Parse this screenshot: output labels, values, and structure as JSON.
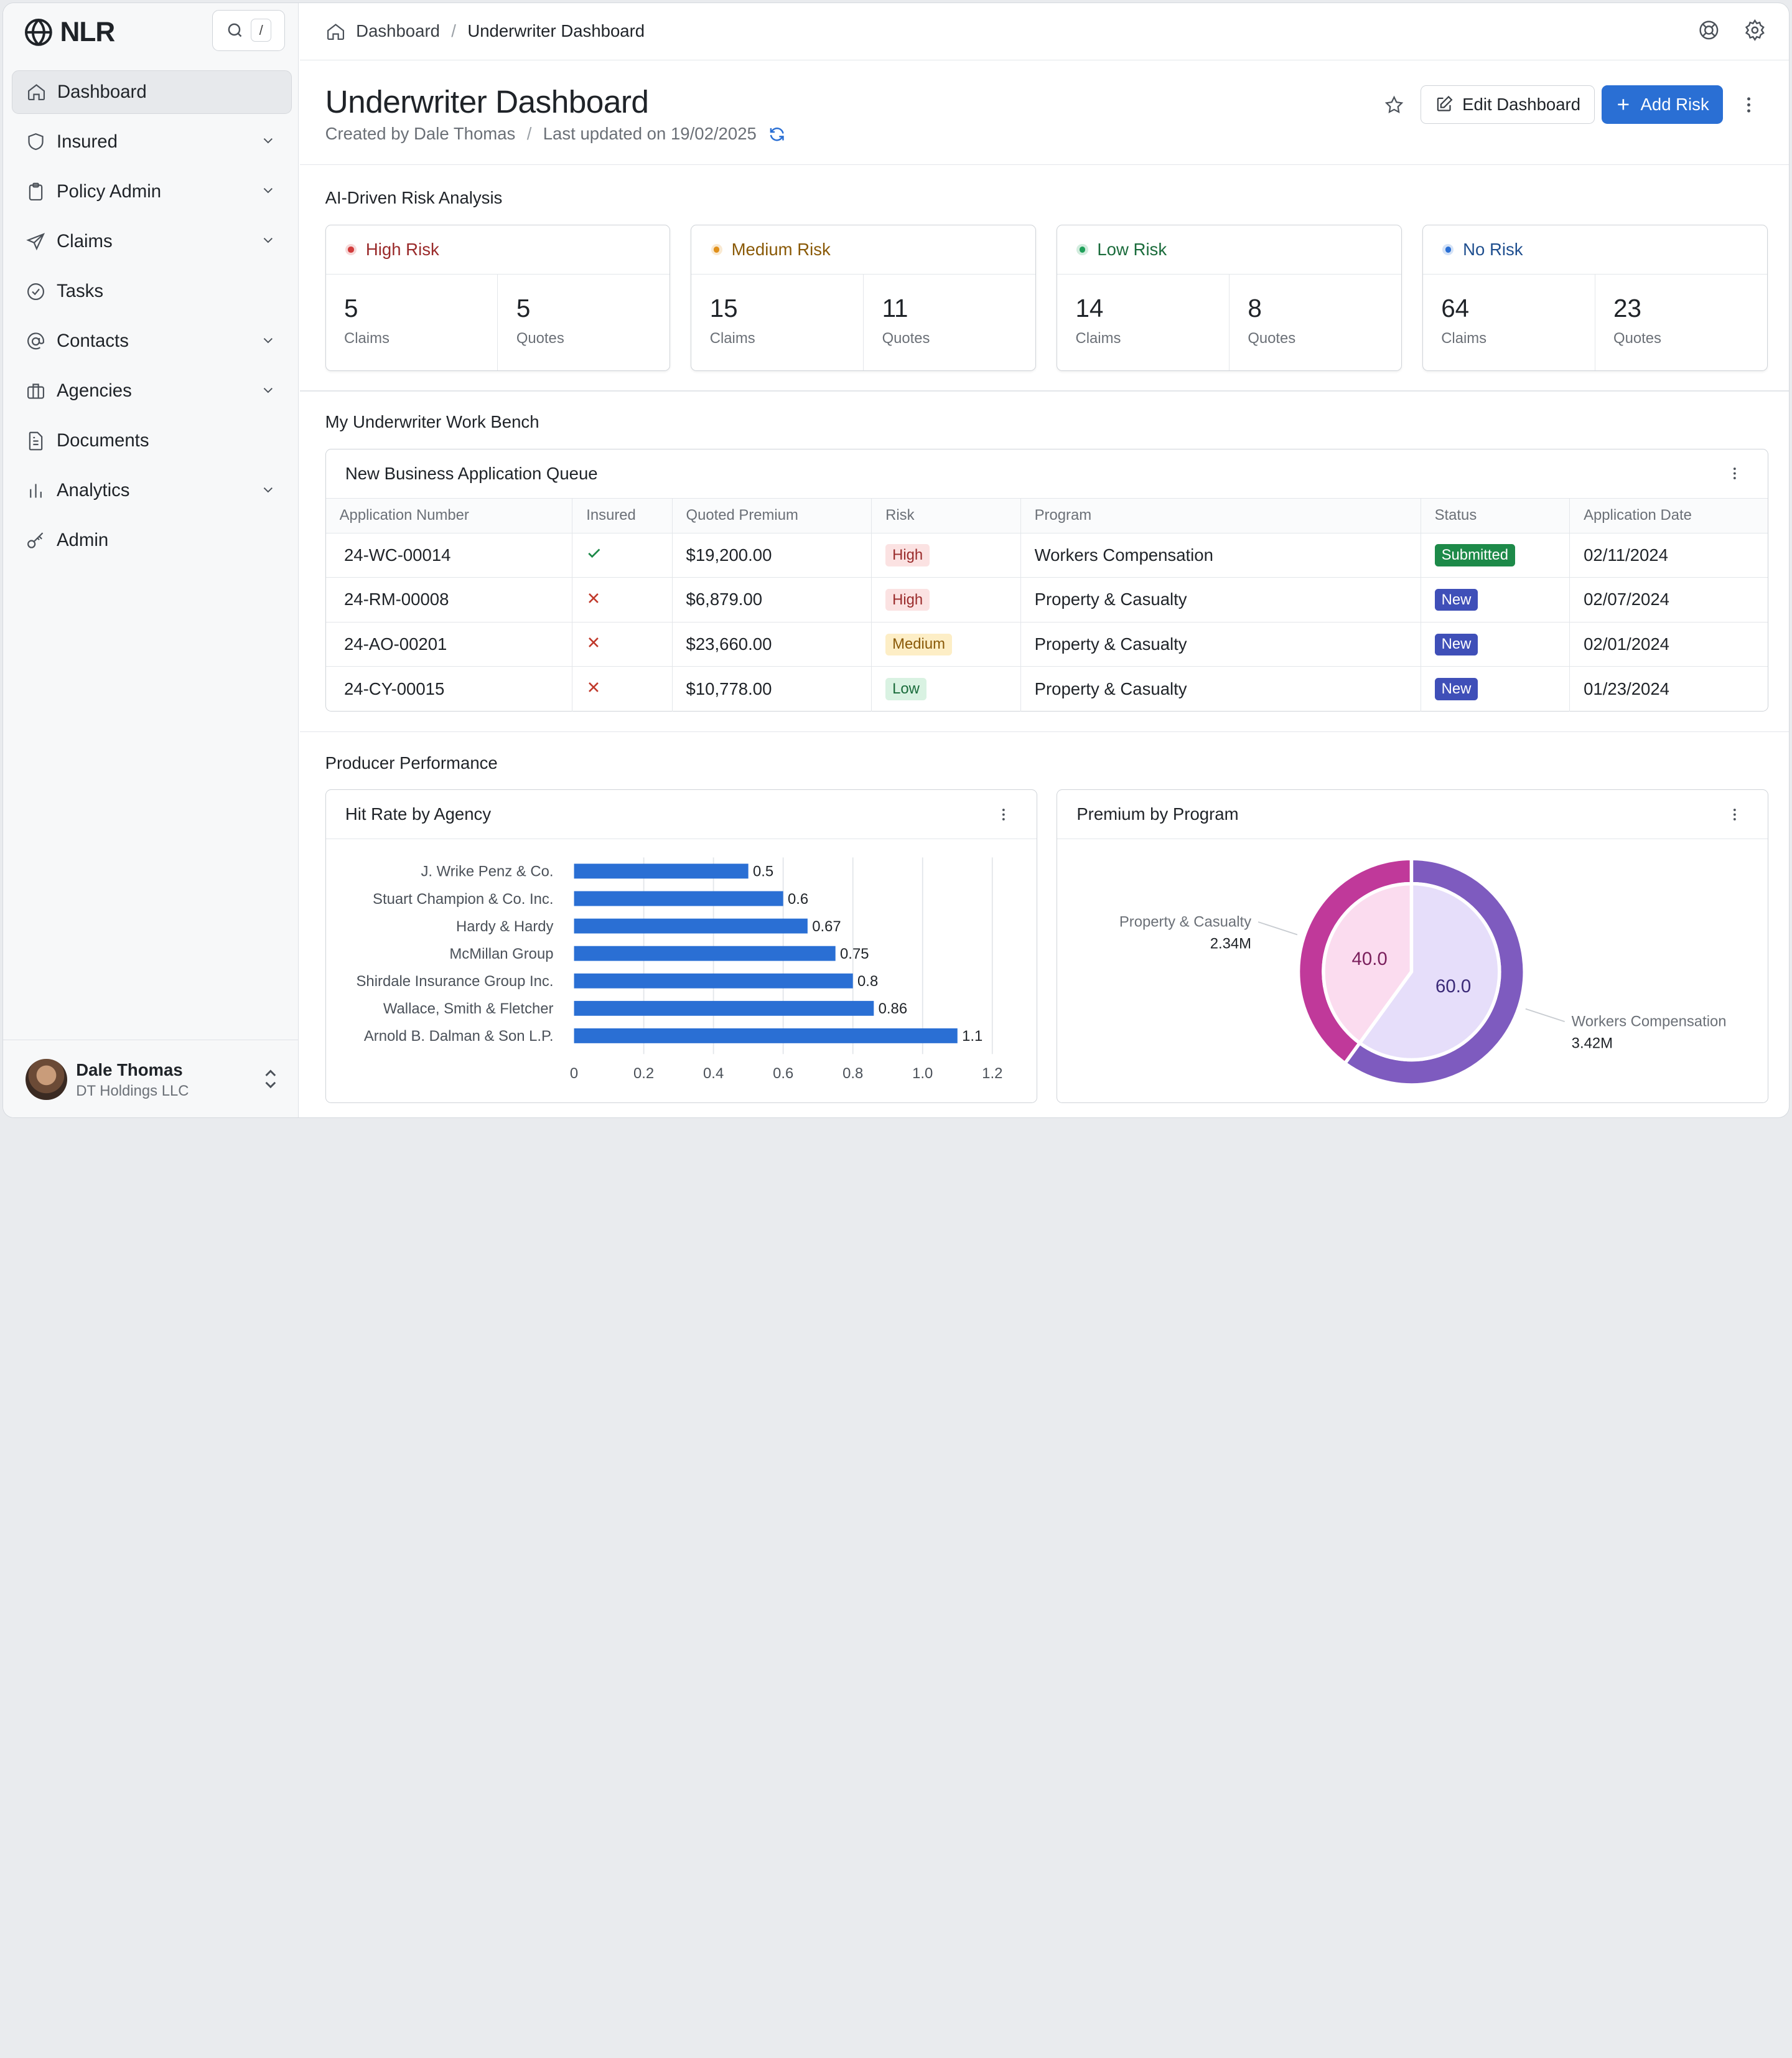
{
  "brand": {
    "name": "NLR"
  },
  "search": {
    "shortcut": "/"
  },
  "sidebar": {
    "items": [
      {
        "label": "Dashboard"
      },
      {
        "label": "Insured"
      },
      {
        "label": "Policy Admin"
      },
      {
        "label": "Claims"
      },
      {
        "label": "Tasks"
      },
      {
        "label": "Contacts"
      },
      {
        "label": "Agencies"
      },
      {
        "label": "Documents"
      },
      {
        "label": "Analytics"
      },
      {
        "label": "Admin"
      }
    ]
  },
  "user": {
    "name": "Dale Thomas",
    "org": "DT Holdings LLC"
  },
  "breadcrumb": {
    "root": "Dashboard",
    "current": "Underwriter Dashboard"
  },
  "page": {
    "title": "Underwriter Dashboard",
    "created_by": "Created by Dale Thomas",
    "updated": "Last updated on 19/02/2025",
    "edit_label": "Edit Dashboard",
    "add_label": "Add Risk"
  },
  "risk_section": {
    "title": "AI-Driven Risk Analysis",
    "claims_label": "Claims",
    "quotes_label": "Quotes",
    "cards": [
      {
        "label": "High Risk",
        "claims": "5",
        "quotes": "5",
        "color": "#d23c3c",
        "text_color": "#9a2b2b"
      },
      {
        "label": "Medium Risk",
        "claims": "15",
        "quotes": "11",
        "color": "#e0901a",
        "text_color": "#8a5a08"
      },
      {
        "label": "Low Risk",
        "claims": "14",
        "quotes": "8",
        "color": "#20a05a",
        "text_color": "#1a6b3b"
      },
      {
        "label": "No Risk",
        "claims": "64",
        "quotes": "23",
        "color": "#2a6fd4",
        "text_color": "#1f4f8f"
      }
    ]
  },
  "workbench": {
    "title": "My Underwriter Work Bench",
    "queue_title": "New Business Application Queue",
    "columns": [
      "Application Number",
      "Insured",
      "Quoted Premium",
      "Risk",
      "Program",
      "Status",
      "Application Date"
    ],
    "rows": [
      {
        "number": "24-WC-00014",
        "insured": true,
        "premium": "$19,200.00",
        "risk": "High",
        "risk_class": "high",
        "program": "Workers Compensation",
        "status": "Submitted",
        "status_class": "submitted",
        "date": "02/11/2024"
      },
      {
        "number": "24-RM-00008",
        "insured": false,
        "premium": "$6,879.00",
        "risk": "High",
        "risk_class": "high",
        "program": "Property & Casualty",
        "status": "New",
        "status_class": "new",
        "date": "02/07/2024"
      },
      {
        "number": "24-AO-00201",
        "insured": false,
        "premium": "$23,660.00",
        "risk": "Medium",
        "risk_class": "medium",
        "program": "Property & Casualty",
        "status": "New",
        "status_class": "new",
        "date": "02/01/2024"
      },
      {
        "number": "24-CY-00015",
        "insured": false,
        "premium": "$10,778.00",
        "risk": "Low",
        "risk_class": "low",
        "program": "Property & Casualty",
        "status": "New",
        "status_class": "new",
        "date": "01/23/2024"
      }
    ]
  },
  "producer": {
    "title": "Producer Performance"
  },
  "chart_data": [
    {
      "type": "bar",
      "orientation": "horizontal",
      "title": "Hit Rate by Agency",
      "categories": [
        "J. Wrike Penz & Co.",
        "Stuart Champion & Co. Inc.",
        "Hardy & Hardy",
        "McMillan Group",
        "Shirdale Insurance Group Inc.",
        "Wallace, Smith & Fletcher",
        "Arnold B. Dalman & Son L.P."
      ],
      "values": [
        0.5,
        0.6,
        0.67,
        0.75,
        0.8,
        0.86,
        1.1
      ],
      "value_labels": [
        "0.5",
        "0.6",
        "0.67",
        "0.75",
        "0.8",
        "0.86",
        "1.1"
      ],
      "xlim": [
        0,
        1.2
      ],
      "xticks": [
        "0",
        "0.2",
        "0.4",
        "0.6",
        "0.8",
        "1.0",
        "1.2"
      ],
      "grid": true,
      "color": "#2a6fd4"
    },
    {
      "type": "pie",
      "title": "Premium by Program",
      "slices": [
        {
          "name": "Workers Compensation",
          "value": 60.0,
          "label": "60.0",
          "total": "3.42M",
          "outer": "#7e5bbf",
          "inner": "#e6defa"
        },
        {
          "name": "Property & Casualty",
          "value": 40.0,
          "label": "40.0",
          "total": "2.34M",
          "outer": "#c0399a",
          "inner": "#fbdcef"
        }
      ]
    }
  ]
}
